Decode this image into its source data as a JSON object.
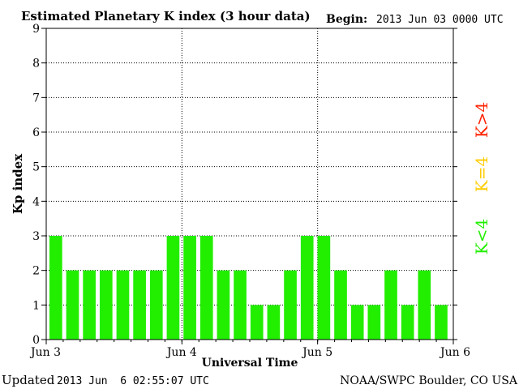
{
  "header": {
    "title": "Estimated Planetary K index (3 hour data)",
    "begin_label": "Begin:",
    "begin_value": "2013 Jun 03 0000 UTC"
  },
  "footer": {
    "updated_label": "Updated",
    "updated_value": "2013 Jun  6 02:55:07 UTC",
    "credit": "NOAA/SWPC Boulder, CO USA"
  },
  "legend": {
    "quiet": "K<4",
    "active": "K=4",
    "storm": "K>4"
  },
  "colors": {
    "quiet": "#22ee00",
    "active": "#ffcc00",
    "storm": "#ff2200"
  },
  "chart_data": {
    "type": "bar",
    "xlabel": "Universal Time",
    "ylabel": "Kp index",
    "ylim": [
      0,
      9
    ],
    "yticks": [
      0,
      1,
      2,
      3,
      4,
      5,
      6,
      7,
      8,
      9
    ],
    "x_tick_labels": [
      "Jun 3",
      "Jun 4",
      "Jun 5",
      "Jun 6"
    ],
    "grid": true,
    "interval_hours": 3,
    "values": [
      3,
      2,
      2,
      2,
      2,
      2,
      2,
      3,
      3,
      3,
      2,
      2,
      1,
      1,
      2,
      3,
      3,
      2,
      1,
      1,
      2,
      1,
      2,
      1
    ]
  }
}
